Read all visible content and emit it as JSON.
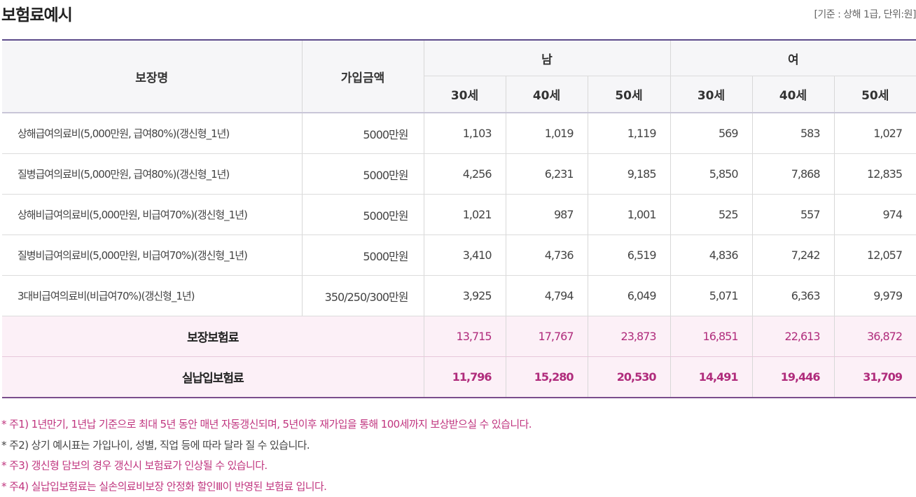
{
  "title": "보험료예시",
  "basis": "[기준 : 상해 1급, 단위:원]",
  "table": {
    "headers": {
      "coverage": "보장명",
      "amount": "가입금액",
      "male": "남",
      "female": "여",
      "ages": [
        "30세",
        "40세",
        "50세",
        "30세",
        "40세",
        "50세"
      ]
    },
    "rows": [
      {
        "name": "상해급여의료비(5,000만원, 급여80%)(갱신형_1년)",
        "amount": "5000만원",
        "values": [
          "1,103",
          "1,019",
          "1,119",
          "569",
          "583",
          "1,027"
        ]
      },
      {
        "name": "질병급여의료비(5,000만원, 급여80%)(갱신형_1년)",
        "amount": "5000만원",
        "values": [
          "4,256",
          "6,231",
          "9,185",
          "5,850",
          "7,868",
          "12,835"
        ]
      },
      {
        "name": "상해비급여의료비(5,000만원, 비급여70%)(갱신형_1년)",
        "amount": "5000만원",
        "values": [
          "1,021",
          "987",
          "1,001",
          "525",
          "557",
          "974"
        ]
      },
      {
        "name": "질병비급여의료비(5,000만원, 비급여70%)(갱신형_1년)",
        "amount": "5000만원",
        "values": [
          "3,410",
          "4,736",
          "6,519",
          "4,836",
          "7,242",
          "12,057"
        ]
      },
      {
        "name": "3대비급여의료비(비급여70%)(갱신형_1년)",
        "amount": "350/250/300만원",
        "values": [
          "3,925",
          "4,794",
          "6,049",
          "5,071",
          "6,363",
          "9,979"
        ]
      }
    ],
    "total": {
      "label": "보장보험료",
      "values": [
        "13,715",
        "17,767",
        "23,873",
        "16,851",
        "22,613",
        "36,872"
      ]
    },
    "payment": {
      "label": "실납입보험료",
      "values": [
        "11,796",
        "15,280",
        "20,530",
        "14,491",
        "19,446",
        "31,709"
      ]
    }
  },
  "notes": [
    "* 주1) 1년만기, 1년납 기준으로 최대 5년 동안 매년 자동갱신되며, 5년이후 재가입을 통해 100세까지 보상받으실 수 있습니다.",
    "* 주2) 상기 예시표는 가입나이, 성별, 직업 등에 따라 달라 질 수 있습니다.",
    "* 주3) 갱신형 담보의 경우 갱신시 보험료가 인상될 수 있습니다.",
    "* 주4) 실납입보험료는 실손의료비보장 안정화 할인Ⅲ이 반영된 보험료 입니다."
  ],
  "colors": {
    "accent_purple": "#5c4b8a",
    "pink_text": "#b02c7c",
    "sum_bg": "#fcf0f7"
  }
}
